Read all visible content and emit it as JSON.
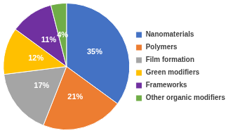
{
  "chart_data": {
    "type": "pie",
    "categories": [
      "Nanomaterials",
      "Polymers",
      "Film formation",
      "Green modifiers",
      "Frameworks",
      "Other organic modifiers"
    ],
    "values": [
      35,
      21,
      17,
      12,
      11,
      4
    ],
    "value_labels": [
      "35%",
      "21%",
      "17%",
      "12%",
      "11%",
      "4%"
    ],
    "colors": [
      "#4472c4",
      "#ed7d31",
      "#a5a5a5",
      "#ffc000",
      "#7030a0",
      "#70ad47"
    ],
    "legend": "right",
    "data_labels": true
  }
}
